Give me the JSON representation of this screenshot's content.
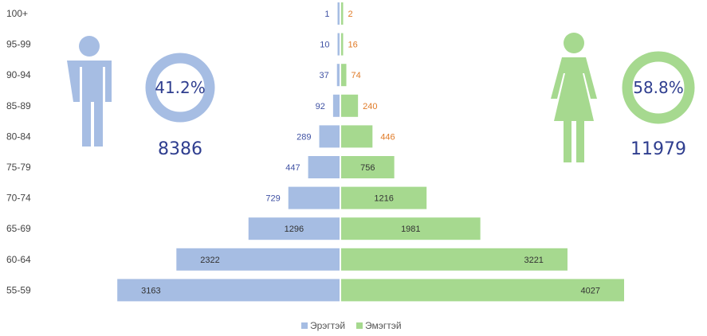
{
  "colors": {
    "male": "#a6bde3",
    "female": "#a6d98f",
    "label_blue": "#3f51a3",
    "label_orange": "#e07b28",
    "label_dark": "#333333",
    "stat_text": "#2f3e8f"
  },
  "male_stat": {
    "percent": "41.2%",
    "fraction": 0.412,
    "total": "8386",
    "icon": "male-person-icon"
  },
  "female_stat": {
    "percent": "58.8%",
    "fraction": 0.588,
    "total": "11979",
    "icon": "female-person-icon"
  },
  "chart_data": {
    "type": "bar",
    "orientation": "horizontal-pyramid",
    "categories": [
      "100+",
      "95-99",
      "90-94",
      "85-89",
      "80-84",
      "75-79",
      "70-74",
      "65-69",
      "60-64",
      "55-59"
    ],
    "series": [
      {
        "name": "Эрэгтэй",
        "side": "left",
        "values": [
          1,
          10,
          37,
          92,
          289,
          447,
          729,
          1296,
          2322,
          3163
        ]
      },
      {
        "name": "Эмэгтэй",
        "side": "right",
        "values": [
          2,
          16,
          74,
          240,
          446,
          756,
          1216,
          1981,
          3221,
          4027
        ]
      }
    ],
    "legend": {
      "position": "bottom",
      "items": [
        "Эрэгтэй",
        "Эмэгтэй"
      ]
    },
    "grid": false,
    "xlim": [
      0,
      4500
    ]
  }
}
